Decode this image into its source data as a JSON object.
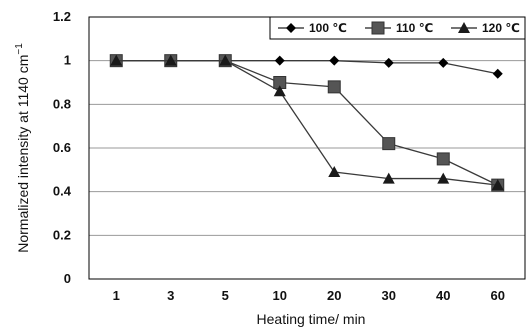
{
  "chart_data": {
    "type": "line",
    "categories": [
      "1",
      "3",
      "5",
      "10",
      "20",
      "30",
      "40",
      "60"
    ],
    "ylim": [
      0,
      1.2
    ],
    "yticks": [
      "0",
      "0.2",
      "0.4",
      "0.6",
      "0.8",
      "1",
      "1.2"
    ],
    "xlabel": "Heating time/ min",
    "ylabel": "Normalized intensity at 1140 cm",
    "ylabel_sup": "−1",
    "grid": "horizontal",
    "legend_position": "top-right",
    "series": [
      {
        "name": "100 ℃",
        "marker": "diamond",
        "values": [
          1.0,
          1.0,
          1.0,
          1.0,
          1.0,
          0.99,
          0.99,
          0.94
        ]
      },
      {
        "name": "110 ℃",
        "marker": "square",
        "values": [
          1.0,
          1.0,
          1.0,
          0.9,
          0.88,
          0.62,
          0.55,
          0.43
        ]
      },
      {
        "name": "120 ℃",
        "marker": "triangle",
        "values": [
          1.0,
          1.0,
          1.0,
          0.86,
          0.49,
          0.46,
          0.46,
          0.43
        ]
      }
    ]
  }
}
